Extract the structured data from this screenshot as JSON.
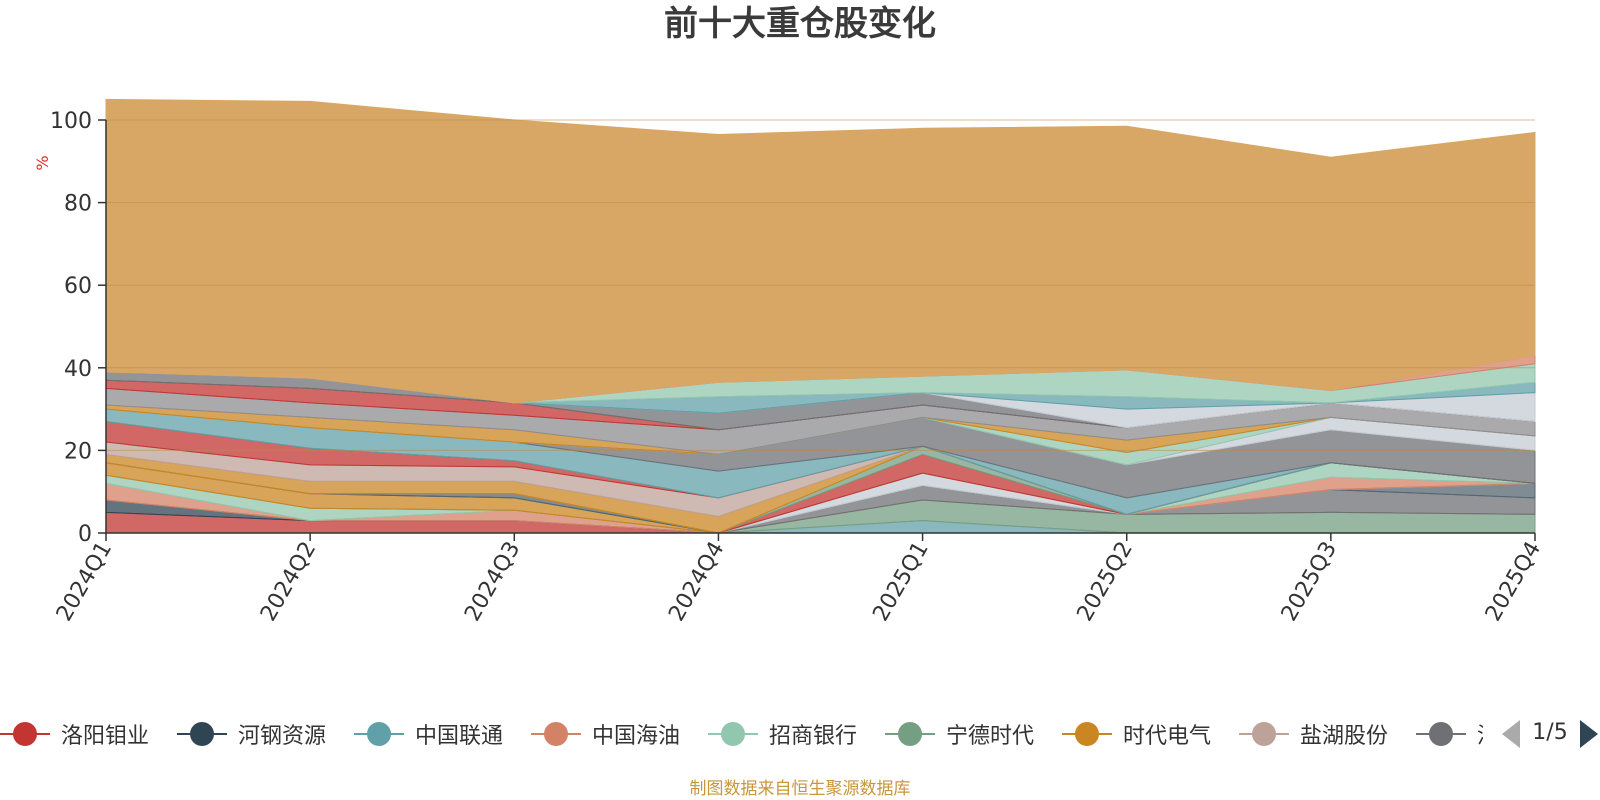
{
  "chart_data": {
    "type": "area",
    "stacked": true,
    "title": "前十大重仓股变化",
    "ylabel": "%",
    "ylim": [
      0,
      100
    ],
    "yticks": [
      0,
      20,
      40,
      60,
      80,
      100
    ],
    "categories": [
      "2024Q1",
      "2024Q2",
      "2024Q3",
      "2024Q4",
      "2025Q1",
      "2025Q2",
      "2025Q3",
      "2025Q4"
    ],
    "grid": true,
    "legend_position": "bottom",
    "series": [
      {
        "name": "洛阳钼业",
        "color": "#c23531",
        "values": [
          5,
          3,
          3,
          0,
          0,
          0,
          0,
          0
        ]
      },
      {
        "name": "河钢资源",
        "color": "#2f4554",
        "values": [
          3,
          0,
          0,
          0,
          0,
          0,
          0,
          0
        ]
      },
      {
        "name": "中国联通",
        "color": "#61a0a8",
        "values": [
          0,
          0,
          0,
          0,
          3,
          0,
          0,
          0
        ]
      },
      {
        "name": "中国海油",
        "color": "#d48265",
        "values": [
          4,
          0,
          2.5,
          0,
          0,
          0,
          0,
          0
        ]
      },
      {
        "name": "招商银行",
        "color": "#91c7ae",
        "values": [
          2,
          3,
          0,
          0,
          0,
          0,
          0,
          0
        ]
      },
      {
        "name": "宁德时代",
        "color": "#749f83",
        "values": [
          0,
          0,
          0,
          0,
          5,
          4.5,
          5,
          4.5
        ]
      },
      {
        "name": "时代电气",
        "color": "#ca8622",
        "values": [
          3,
          3.5,
          3,
          0,
          0,
          0,
          0,
          0
        ]
      },
      {
        "name": "盐湖股份",
        "color": "#bda29a",
        "values": [
          0,
          0,
          0,
          0,
          0,
          0,
          0,
          0
        ]
      },
      {
        "name": "",
        "color": "#6e7074",
        "values": [
          0,
          0,
          0,
          0,
          3.5,
          0,
          5.5,
          4
        ]
      },
      {
        "name": "",
        "color": "#546570",
        "values": [
          0,
          0,
          1,
          0,
          0,
          0,
          0,
          3.5
        ]
      },
      {
        "name": "",
        "color": "#c4ccd3",
        "values": [
          0,
          0,
          0,
          0,
          3,
          0,
          0,
          0
        ]
      },
      {
        "name": "",
        "color": "#d48265",
        "values": [
          0,
          0,
          0,
          0,
          0,
          0,
          3,
          0
        ]
      },
      {
        "name": "",
        "color": "#91c7ae",
        "values": [
          0,
          0,
          0,
          0,
          0,
          0,
          3.5,
          0
        ]
      },
      {
        "name": "",
        "color": "#c23531",
        "values": [
          0,
          0,
          0,
          0,
          4.5,
          0,
          0,
          0
        ]
      },
      {
        "name": "",
        "color": "#749f83",
        "values": [
          0,
          0,
          0,
          0,
          2,
          0,
          0,
          0
        ]
      },
      {
        "name": "",
        "color": "#ca8622",
        "values": [
          2,
          3,
          3,
          4,
          0,
          0,
          0,
          0
        ]
      },
      {
        "name": "",
        "color": "#bda29a",
        "values": [
          3,
          4,
          3.5,
          4.5,
          0,
          0,
          0,
          0
        ]
      },
      {
        "name": "",
        "color": "#c23531",
        "values": [
          5,
          4,
          1.5,
          0,
          0,
          0,
          0,
          0
        ]
      },
      {
        "name": "",
        "color": "#61a0a8",
        "values": [
          3,
          5,
          4.5,
          6.5,
          0,
          4,
          0,
          0
        ]
      },
      {
        "name": "",
        "color": "#6e7074",
        "values": [
          0,
          0,
          0,
          4,
          7,
          8,
          8,
          8
        ]
      },
      {
        "name": "",
        "color": "#c4ccd3",
        "values": [
          0,
          0,
          0,
          0,
          0,
          0,
          3,
          3.5
        ]
      },
      {
        "name": "",
        "color": "#91c7ae",
        "values": [
          0,
          0,
          0,
          0,
          0,
          3,
          0,
          0
        ]
      },
      {
        "name": "",
        "color": "#ca8622",
        "values": [
          1,
          2.5,
          3,
          0,
          0,
          3,
          0,
          0
        ]
      },
      {
        "name": "",
        "color": "#8e8e91",
        "values": [
          4,
          3.5,
          3.5,
          6,
          3,
          3,
          3.5,
          3.5
        ]
      },
      {
        "name": "",
        "color": "#c23531",
        "values": [
          2,
          3.5,
          3,
          0,
          0,
          0,
          0,
          0
        ]
      },
      {
        "name": "",
        "color": "#6e7074",
        "values": [
          2,
          2.5,
          0,
          4,
          3,
          0,
          0,
          0
        ]
      },
      {
        "name": "",
        "color": "#c4ccd3",
        "values": [
          0,
          0,
          0,
          0,
          0,
          4.5,
          0,
          7
        ]
      },
      {
        "name": "",
        "color": "#61a0a8",
        "values": [
          0,
          0,
          0,
          4,
          0,
          3,
          0,
          2.5
        ]
      },
      {
        "name": "",
        "color": "#91c7ae",
        "values": [
          0,
          0,
          0,
          3.5,
          4,
          6.5,
          3,
          4.5
        ]
      },
      {
        "name": "",
        "color": "#d48265",
        "values": [
          0,
          0,
          0,
          0,
          0,
          0,
          0,
          2
        ]
      },
      {
        "name": "",
        "color": "#d8a765",
        "values": [
          66,
          67,
          68.5,
          60,
          60,
          59,
          56.5,
          54
        ]
      }
    ]
  },
  "legend": {
    "items": [
      {
        "label": "洛阳钼业",
        "color": "#c23531"
      },
      {
        "label": "河钢资源",
        "color": "#2f4554"
      },
      {
        "label": "中国联通",
        "color": "#61a0a8"
      },
      {
        "label": "中国海油",
        "color": "#d48265"
      },
      {
        "label": "招商银行",
        "color": "#91c7ae"
      },
      {
        "label": "宁德时代",
        "color": "#749f83"
      },
      {
        "label": "时代电气",
        "color": "#ca8622"
      },
      {
        "label": "盐湖股份",
        "color": "#bda29a"
      },
      {
        "label": "洛",
        "color": "#6e7074"
      }
    ],
    "page_text": "1/5"
  },
  "footer": "制图数据来自恒生聚源数据库"
}
